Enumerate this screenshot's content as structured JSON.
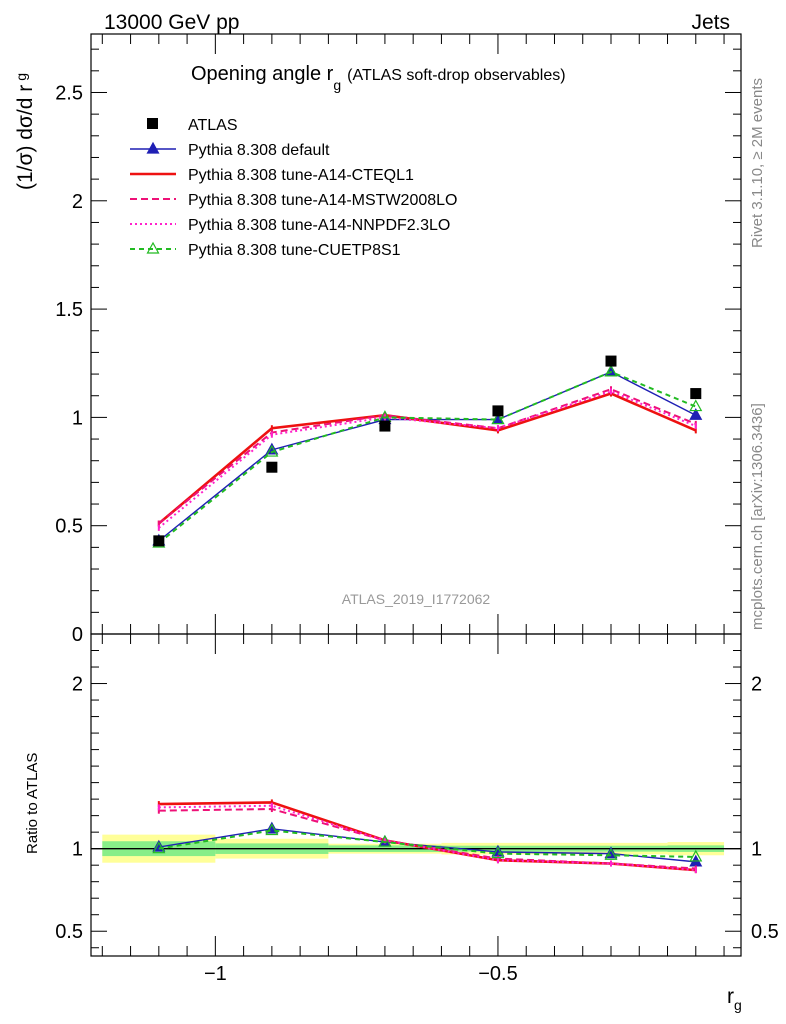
{
  "header": {
    "left": "13000 GeV pp",
    "right": "Jets"
  },
  "side_text": {
    "top": "Rivet 3.1.10, ≥ 2M events",
    "bottom": "mcplots.cern.ch [arXiv:1306.3436]"
  },
  "chart_data": [
    {
      "type": "line",
      "title": "Opening angle r",
      "title_sub": "g",
      "title_suffix": "(ATLAS soft-drop observables)",
      "ylabel": "(1/σ) dσ/d r",
      "ylabel_sub": "g",
      "watermark": "ATLAS_2019_I1772062",
      "ylim": [
        0,
        2.77
      ],
      "xlim": [
        -1.22,
        -0.07
      ],
      "yticks": [
        0,
        0.5,
        1,
        1.5,
        2,
        2.5
      ],
      "ytick_labels": [
        "0",
        "0.5",
        "1",
        "1.5",
        "2",
        "2.5"
      ],
      "x": [
        -1.1,
        -0.9,
        -0.7,
        -0.5,
        -0.3,
        -0.15
      ],
      "bin_edges": [
        -1.2,
        -1.0,
        -0.8,
        -0.6,
        -0.4,
        -0.2,
        -0.1
      ],
      "data": {
        "name": "ATLAS",
        "values": [
          0.43,
          0.77,
          0.96,
          1.03,
          1.26,
          1.11
        ]
      },
      "series": [
        {
          "name": "Pythia 8.308 default",
          "color": "#1f1fb4",
          "style": "solid",
          "marker": "triangle",
          "values": [
            0.43,
            0.85,
            0.99,
            0.99,
            1.21,
            1.01
          ]
        },
        {
          "name": "Pythia 8.308 tune-A14-CTEQL1",
          "color": "#ee1111",
          "style": "thick",
          "marker": "none",
          "values": [
            0.51,
            0.95,
            1.01,
            0.94,
            1.11,
            0.94
          ]
        },
        {
          "name": "Pythia 8.308 tune-A14-MSTW2008LO",
          "color": "#ee1177",
          "style": "dashed",
          "marker": "none",
          "values": [
            0.51,
            0.93,
            1.01,
            0.95,
            1.13,
            0.97
          ]
        },
        {
          "name": "Pythia 8.308 tune-A14-NNPDF2.3LO",
          "color": "#ff22cc",
          "style": "dotted",
          "marker": "none",
          "values": [
            0.49,
            0.92,
            1.0,
            0.95,
            1.12,
            0.96
          ]
        },
        {
          "name": "Pythia 8.308 tune-CUETP8S1",
          "color": "#22bb22",
          "style": "dashed-thin",
          "marker": "open-triangle",
          "values": [
            0.42,
            0.84,
            1.0,
            0.99,
            1.21,
            1.05
          ]
        }
      ]
    },
    {
      "type": "line",
      "ylabel": "Ratio to ATLAS",
      "xlabel": "r",
      "xlabel_sub": "g",
      "ylim": [
        0.35,
        2.3
      ],
      "yticks": [
        0.5,
        1,
        2
      ],
      "ytick_labels": [
        "0.5",
        "1",
        "2"
      ],
      "xticks": [
        -1.0,
        -0.5
      ],
      "xtick_labels": [
        "−1",
        "−0.5"
      ],
      "x": [
        -1.1,
        -0.9,
        -0.7,
        -0.5,
        -0.3,
        -0.15
      ],
      "bands": {
        "stat": [
          0.045,
          0.032,
          0.02,
          0.018,
          0.018,
          0.02
        ],
        "total": [
          0.085,
          0.06,
          0.03,
          0.035,
          0.035,
          0.04
        ]
      },
      "series": [
        {
          "name": "Pythia 8.308 default",
          "color": "#1f1fb4",
          "style": "solid",
          "marker": "triangle",
          "values": [
            1.01,
            1.12,
            1.04,
            0.98,
            0.97,
            0.92
          ]
        },
        {
          "name": "Pythia 8.308 tune-A14-CTEQL1",
          "color": "#ee1111",
          "style": "thick",
          "marker": "none",
          "values": [
            1.27,
            1.28,
            1.05,
            0.93,
            0.91,
            0.87
          ]
        },
        {
          "name": "Pythia 8.308 tune-A14-MSTW2008LO",
          "color": "#ee1177",
          "style": "dashed",
          "marker": "none",
          "values": [
            1.23,
            1.24,
            1.05,
            0.94,
            0.91,
            0.88
          ]
        },
        {
          "name": "Pythia 8.308 tune-A14-NNPDF2.3LO",
          "color": "#ff22cc",
          "style": "dotted",
          "marker": "none",
          "values": [
            1.25,
            1.26,
            1.05,
            0.93,
            0.91,
            0.87
          ]
        },
        {
          "name": "Pythia 8.308 tune-CUETP8S1",
          "color": "#22bb22",
          "style": "dashed-thin",
          "marker": "open-triangle",
          "values": [
            1.0,
            1.11,
            1.04,
            0.97,
            0.96,
            0.95
          ]
        }
      ]
    }
  ]
}
